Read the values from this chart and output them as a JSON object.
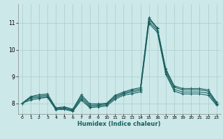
{
  "xlabel": "Humidex (Indice chaleur)",
  "ylabel": "",
  "background_color": "#cce8e8",
  "grid_color": "#aacccc",
  "line_color": "#1a6060",
  "xlim": [
    -0.5,
    23.5
  ],
  "ylim": [
    7.6,
    11.7
  ],
  "yticks": [
    8,
    9,
    10,
    11
  ],
  "xticks": [
    0,
    1,
    2,
    3,
    4,
    5,
    6,
    7,
    8,
    9,
    10,
    11,
    12,
    13,
    14,
    15,
    16,
    17,
    18,
    19,
    20,
    21,
    22,
    23
  ],
  "series": [
    [
      8.0,
      8.25,
      8.32,
      8.35,
      7.83,
      7.87,
      7.78,
      8.32,
      7.98,
      7.98,
      8.0,
      8.3,
      8.42,
      8.52,
      8.58,
      11.2,
      10.82,
      9.28,
      8.65,
      8.55,
      8.55,
      8.55,
      8.5,
      8.05
    ],
    [
      8.0,
      8.22,
      8.27,
      8.3,
      7.8,
      7.84,
      7.75,
      8.25,
      7.93,
      7.94,
      7.98,
      8.25,
      8.38,
      8.47,
      8.53,
      11.15,
      10.78,
      9.22,
      8.6,
      8.5,
      8.5,
      8.5,
      8.45,
      8.0
    ],
    [
      8.0,
      8.18,
      8.22,
      8.26,
      7.78,
      7.8,
      7.73,
      8.18,
      7.88,
      7.9,
      7.95,
      8.2,
      8.35,
      8.42,
      8.48,
      11.05,
      10.72,
      9.15,
      8.52,
      8.42,
      8.42,
      8.42,
      8.38,
      7.97
    ],
    [
      8.0,
      8.12,
      8.18,
      8.22,
      7.76,
      7.77,
      7.7,
      8.12,
      7.84,
      7.86,
      7.9,
      8.15,
      8.3,
      8.36,
      8.42,
      10.98,
      10.65,
      9.08,
      8.45,
      8.35,
      8.35,
      8.35,
      8.3,
      7.93
    ]
  ]
}
